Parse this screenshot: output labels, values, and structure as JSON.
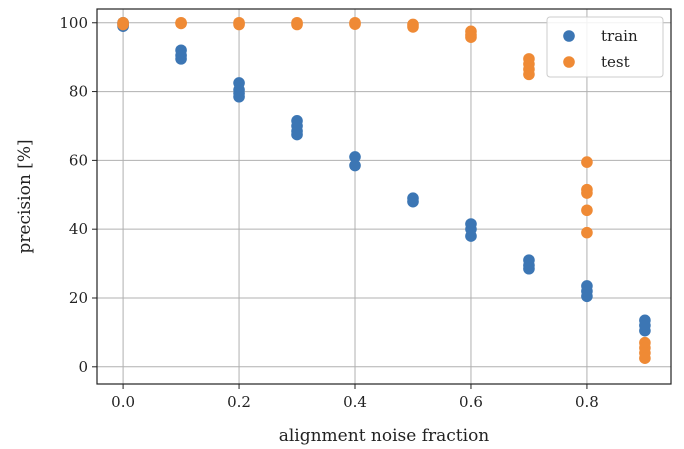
{
  "chart_data": {
    "type": "scatter",
    "title": "",
    "xlabel": "alignment noise fraction",
    "ylabel": "precision [%]",
    "xlim": [
      -0.045,
      0.945
    ],
    "ylim": [
      -5,
      104
    ],
    "xticks": [
      0.0,
      0.2,
      0.4,
      0.6,
      0.8
    ],
    "xtick_labels": [
      "0.0",
      "0.2",
      "0.4",
      "0.6",
      "0.8"
    ],
    "yticks": [
      0,
      20,
      40,
      60,
      80,
      100
    ],
    "ytick_labels": [
      "0",
      "20",
      "40",
      "60",
      "80",
      "100"
    ],
    "grid": true,
    "legend_position": "top-right",
    "series": [
      {
        "name": "train",
        "color": "#3c76b4",
        "points": [
          [
            0.0,
            99.5
          ],
          [
            0.0,
            100.0
          ],
          [
            0.0,
            99.0
          ],
          [
            0.1,
            92.0
          ],
          [
            0.1,
            90.5
          ],
          [
            0.1,
            89.5
          ],
          [
            0.2,
            82.5
          ],
          [
            0.2,
            80.5
          ],
          [
            0.2,
            79.5
          ],
          [
            0.2,
            78.5
          ],
          [
            0.3,
            71.5
          ],
          [
            0.3,
            70.0
          ],
          [
            0.3,
            68.5
          ],
          [
            0.3,
            67.5
          ],
          [
            0.4,
            61.0
          ],
          [
            0.4,
            58.5
          ],
          [
            0.5,
            49.0
          ],
          [
            0.5,
            48.0
          ],
          [
            0.6,
            41.5
          ],
          [
            0.6,
            40.0
          ],
          [
            0.6,
            38.0
          ],
          [
            0.7,
            31.0
          ],
          [
            0.7,
            29.5
          ],
          [
            0.7,
            28.5
          ],
          [
            0.8,
            23.5
          ],
          [
            0.8,
            22.0
          ],
          [
            0.8,
            20.5
          ],
          [
            0.9,
            13.5
          ],
          [
            0.9,
            12.0
          ],
          [
            0.9,
            10.5
          ]
        ]
      },
      {
        "name": "test",
        "color": "#ef8a35",
        "points": [
          [
            0.0,
            100.0
          ],
          [
            0.0,
            99.5
          ],
          [
            0.1,
            100.0
          ],
          [
            0.1,
            99.8
          ],
          [
            0.2,
            100.0
          ],
          [
            0.2,
            99.5
          ],
          [
            0.3,
            100.0
          ],
          [
            0.3,
            99.5
          ],
          [
            0.4,
            100.0
          ],
          [
            0.4,
            99.6
          ],
          [
            0.5,
            99.5
          ],
          [
            0.5,
            98.8
          ],
          [
            0.6,
            97.5
          ],
          [
            0.6,
            96.5
          ],
          [
            0.6,
            95.8
          ],
          [
            0.7,
            89.5
          ],
          [
            0.7,
            88.0
          ],
          [
            0.7,
            86.5
          ],
          [
            0.7,
            85.0
          ],
          [
            0.8,
            59.5
          ],
          [
            0.8,
            51.5
          ],
          [
            0.8,
            50.5
          ],
          [
            0.8,
            45.5
          ],
          [
            0.8,
            39.0
          ],
          [
            0.9,
            7.0
          ],
          [
            0.9,
            5.5
          ],
          [
            0.9,
            4.0
          ],
          [
            0.9,
            2.5
          ]
        ]
      }
    ]
  }
}
